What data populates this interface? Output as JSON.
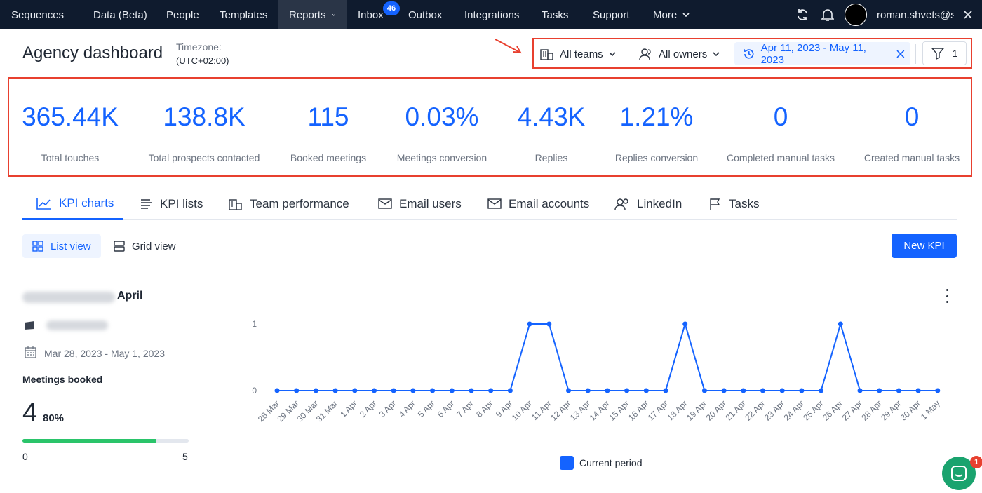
{
  "nav": {
    "items": [
      {
        "label": "Sequences"
      },
      {
        "label": "Data (Beta)"
      },
      {
        "label": "People"
      },
      {
        "label": "Templates"
      },
      {
        "label": "Reports"
      },
      {
        "label": "Inbox",
        "badge": "46"
      },
      {
        "label": "Outbox"
      },
      {
        "label": "Integrations"
      },
      {
        "label": "Tasks"
      },
      {
        "label": "Support"
      },
      {
        "label": "More"
      }
    ],
    "active": "Reports",
    "user": "roman.shvets@s..."
  },
  "header": {
    "title": "Agency dashboard",
    "timezone_label": "Timezone:",
    "timezone_value": "(UTC+02:00)",
    "filters": {
      "teams": "All teams",
      "owners": "All owners",
      "date_range": "Apr 11, 2023 - May 11, 2023",
      "filter_count": "1"
    }
  },
  "kpis": [
    {
      "value": "365.44K",
      "label": "Total touches"
    },
    {
      "value": "138.8K",
      "label": "Total prospects contacted"
    },
    {
      "value": "115",
      "label": "Booked meetings"
    },
    {
      "value": "0.03%",
      "label": "Meetings conversion"
    },
    {
      "value": "4.43K",
      "label": "Replies"
    },
    {
      "value": "1.21%",
      "label": "Replies conversion"
    },
    {
      "value": "0",
      "label": "Completed manual tasks"
    },
    {
      "value": "0",
      "label": "Created manual tasks"
    }
  ],
  "tabs": [
    {
      "label": "KPI charts"
    },
    {
      "label": "KPI lists"
    },
    {
      "label": "Team performance"
    },
    {
      "label": "Email users"
    },
    {
      "label": "Email accounts"
    },
    {
      "label": "LinkedIn"
    },
    {
      "label": "Tasks"
    }
  ],
  "views": {
    "list": "List view",
    "grid": "Grid view",
    "new_kpi": "New KPI"
  },
  "card": {
    "title_suffix": "April",
    "date_range": "Mar 28, 2023 - May 1, 2023",
    "metric_name": "Meetings booked",
    "metric_value": "4",
    "metric_percent": "80%",
    "progress": 0.8,
    "progress_min": "0",
    "progress_max": "5"
  },
  "chart_data": {
    "type": "line",
    "title": "",
    "xlabel": "",
    "ylabel": "",
    "ylim": [
      0,
      1
    ],
    "yticks": [
      "0",
      "1"
    ],
    "categories": [
      "28 Mar",
      "29 Mar",
      "30 Mar",
      "31 Mar",
      "1 Apr",
      "2 Apr",
      "3 Apr",
      "4 Apr",
      "5 Apr",
      "6 Apr",
      "7 Apr",
      "8 Apr",
      "9 Apr",
      "10 Apr",
      "11 Apr",
      "12 Apr",
      "13 Apr",
      "14 Apr",
      "15 Apr",
      "16 Apr",
      "17 Apr",
      "18 Apr",
      "19 Apr",
      "20 Apr",
      "21 Apr",
      "22 Apr",
      "23 Apr",
      "24 Apr",
      "25 Apr",
      "26 Apr",
      "27 Apr",
      "28 Apr",
      "29 Apr",
      "30 Apr",
      "1 May"
    ],
    "series": [
      {
        "name": "Current period",
        "values": [
          0,
          0,
          0,
          0,
          0,
          0,
          0,
          0,
          0,
          0,
          0,
          0,
          0,
          1,
          1,
          0,
          0,
          0,
          0,
          0,
          0,
          1,
          0,
          0,
          0,
          0,
          0,
          0,
          0,
          1,
          0,
          0,
          0,
          0,
          0
        ]
      }
    ],
    "legend": "bottom-center",
    "color": "#1463ff"
  },
  "chat": {
    "badge": "1"
  }
}
